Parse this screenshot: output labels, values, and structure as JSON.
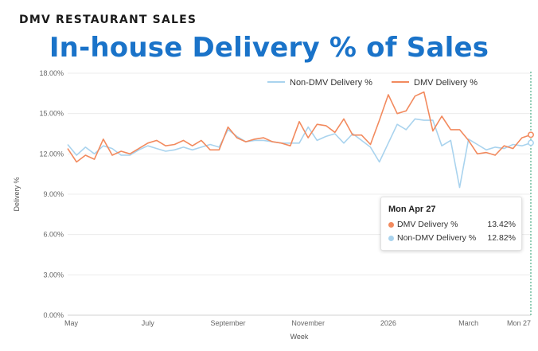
{
  "supertitle": "DMV RESTAURANT SALES",
  "title": "In-house Delivery % of Sales",
  "tooltip": {
    "date": "Mon Apr 27",
    "rows": [
      {
        "name": "DMV Delivery %",
        "value": "13.42%",
        "color": "#f28a5e"
      },
      {
        "name": "Non-DMV Delivery %",
        "value": "12.82%",
        "color": "#a9d3ee"
      }
    ]
  },
  "chart_data": {
    "type": "line",
    "xlabel": "Week",
    "ylabel": "Delivery %",
    "ylim": [
      0,
      18
    ],
    "y_ticks": [
      "0.00%",
      "3.00%",
      "6.00%",
      "9.00%",
      "12.00%",
      "15.00%",
      "18.00%"
    ],
    "x_ticks": [
      {
        "label": "May",
        "week": 0
      },
      {
        "label": "July",
        "week": 9
      },
      {
        "label": "September",
        "week": 18
      },
      {
        "label": "November",
        "week": 27
      },
      {
        "label": "2026",
        "week": 36
      },
      {
        "label": "March",
        "week": 45
      },
      {
        "label": "Mon 27",
        "week": 52
      }
    ],
    "grid": true,
    "legend": "top-right",
    "hover_week": 52,
    "series": [
      {
        "name": "Non-DMV Delivery %",
        "color": "#a9d3ee",
        "values": [
          12.7,
          11.9,
          12.5,
          12.0,
          12.6,
          12.4,
          11.9,
          11.9,
          12.3,
          12.6,
          12.4,
          12.2,
          12.3,
          12.5,
          12.3,
          12.5,
          12.7,
          12.5,
          13.8,
          13.3,
          12.9,
          13.0,
          13.0,
          12.9,
          12.8,
          12.8,
          12.8,
          14.0,
          13.0,
          13.3,
          13.5,
          12.8,
          13.5,
          13.0,
          12.5,
          11.4,
          12.8,
          14.2,
          13.8,
          14.6,
          14.5,
          14.5,
          12.6,
          13.0,
          9.5,
          13.1,
          12.7,
          12.3,
          12.5,
          12.4,
          12.7,
          12.6,
          12.82
        ]
      },
      {
        "name": "DMV Delivery %",
        "color": "#f28a5e",
        "values": [
          12.4,
          11.4,
          11.9,
          11.6,
          13.1,
          11.9,
          12.2,
          12.0,
          12.4,
          12.8,
          13.0,
          12.6,
          12.7,
          13.0,
          12.6,
          13.0,
          12.3,
          12.3,
          14.0,
          13.2,
          12.9,
          13.1,
          13.2,
          12.9,
          12.8,
          12.6,
          14.4,
          13.2,
          14.2,
          14.1,
          13.6,
          14.6,
          13.4,
          13.4,
          12.7,
          14.5,
          16.4,
          15.0,
          15.2,
          16.3,
          16.6,
          13.7,
          14.8,
          13.8,
          13.8,
          13.0,
          12.0,
          12.1,
          11.9,
          12.6,
          12.4,
          13.2,
          13.42
        ]
      }
    ]
  }
}
